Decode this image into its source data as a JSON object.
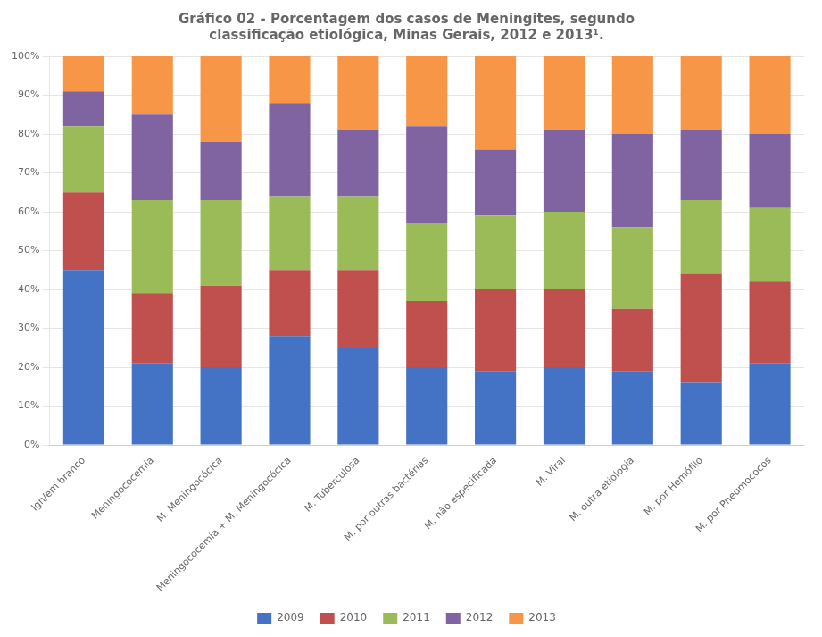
{
  "chart_data": {
    "type": "bar",
    "title": "Gráfico 02 - Porcentagem dos casos de Meningites, segundo\nclassificação etiológica, Minas Gerais, 2012 e 2013¹.",
    "categories": [
      "Ign/em branco",
      "Meningococemia",
      "M. Meningocócica",
      "Meningococemia + M. Meningocócica",
      "M. Tuberculosa",
      "M. por outras bactérias",
      "M. não especificada",
      "M. Viral",
      "M. outra etiologia",
      "M. por Hemófilo",
      "M. por Pneumococos"
    ],
    "series": [
      {
        "name": "2009",
        "color": "#4472C4",
        "values": [
          45,
          21,
          20,
          28,
          25,
          20,
          19,
          20,
          19,
          16,
          21
        ]
      },
      {
        "name": "2010",
        "color": "#C0504D",
        "values": [
          20,
          18,
          21,
          17,
          20,
          17,
          21,
          20,
          16,
          28,
          21
        ]
      },
      {
        "name": "2011",
        "color": "#9BBB59",
        "values": [
          17,
          24,
          22,
          19,
          19,
          20,
          19,
          20,
          21,
          19,
          19
        ]
      },
      {
        "name": "2012",
        "color": "#8064A2",
        "values": [
          9,
          22,
          15,
          24,
          17,
          25,
          17,
          21,
          24,
          18,
          19
        ]
      },
      {
        "name": "2013",
        "color": "#F79646",
        "values": [
          9,
          15,
          22,
          12,
          19,
          18,
          24,
          19,
          20,
          19,
          20
        ]
      }
    ],
    "ylim": [
      0,
      100
    ],
    "yticks": [
      {
        "value": 0,
        "label": "0%"
      },
      {
        "value": 10,
        "label": "10%"
      },
      {
        "value": 20,
        "label": "20%"
      },
      {
        "value": 30,
        "label": "30%"
      },
      {
        "value": 40,
        "label": "40%"
      },
      {
        "value": 50,
        "label": "50%"
      },
      {
        "value": 60,
        "label": "60%"
      },
      {
        "value": 70,
        "label": "70%"
      },
      {
        "value": 80,
        "label": "80%"
      },
      {
        "value": 90,
        "label": "90%"
      },
      {
        "value": 100,
        "label": "100%"
      }
    ],
    "stacked": true,
    "grid": true,
    "legend": "bottom"
  }
}
